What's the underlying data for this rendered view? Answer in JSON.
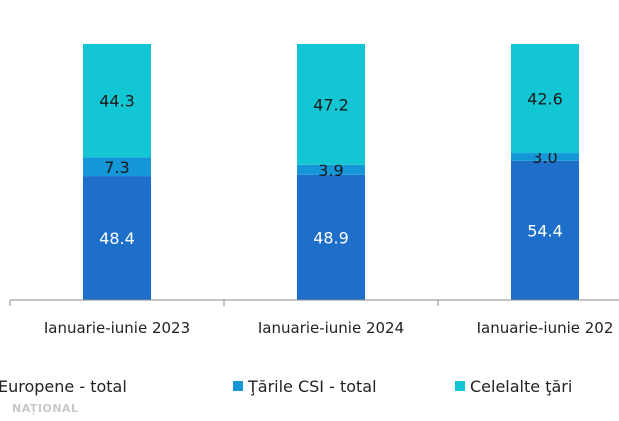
{
  "colors": {
    "europe": "#1d6fc9",
    "csi": "#1496d9",
    "other": "#12c6d4",
    "axis": "#888888"
  },
  "chart_data": {
    "type": "bar",
    "stacked": true,
    "categories": [
      "Ianuarie-iunie 2023",
      "Ianuarie-iunie 2024",
      "Ianuarie-iunie 202"
    ],
    "series": [
      {
        "name": "Europene - total",
        "values": [
          48.4,
          48.9,
          54.4
        ]
      },
      {
        "name": "Ţările CSI - total",
        "values": [
          7.3,
          3.9,
          3.0
        ]
      },
      {
        "name": "Celelalte ţări",
        "values": [
          44.3,
          47.2,
          42.6
        ]
      }
    ],
    "ylim": [
      0,
      100
    ],
    "legend_position": "bottom",
    "grid": false
  },
  "watermark": {
    "text": "NAȚIONAL"
  }
}
